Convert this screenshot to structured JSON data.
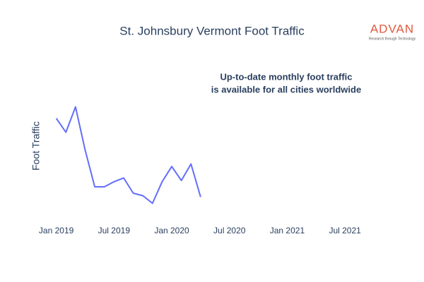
{
  "chart_data": {
    "type": "line",
    "title": "St. Johnsbury Vermont Foot Traffic",
    "y_label": "Foot Traffic",
    "annotation": [
      "Up-to-date monthly foot traffic",
      "is available for all cities worldwide"
    ],
    "logo": {
      "name": "ADVAN",
      "tagline": "Research through Technology"
    },
    "x": [
      "2019-01",
      "2019-02",
      "2019-03",
      "2019-04",
      "2019-05",
      "2019-06",
      "2019-07",
      "2019-08",
      "2019-09",
      "2019-10",
      "2019-11",
      "2019-12",
      "2020-01",
      "2020-02",
      "2020-03",
      "2020-04"
    ],
    "series": [
      {
        "color": "#636efa",
        "values": [
          79,
          68,
          88,
          54,
          25,
          25,
          29,
          32,
          20,
          18,
          12,
          29,
          41,
          30,
          43,
          17
        ]
      }
    ],
    "xlim": [
      "2018-12",
      "2021-10"
    ],
    "xticks": [
      {
        "value": "2019-01",
        "label": "Jan 2019"
      },
      {
        "value": "2019-07",
        "label": "Jul 2019"
      },
      {
        "value": "2020-01",
        "label": "Jan 2020"
      },
      {
        "value": "2020-07",
        "label": "Jul 2020"
      },
      {
        "value": "2021-01",
        "label": "Jan 2021"
      },
      {
        "value": "2021-07",
        "label": "Jul 2021"
      }
    ],
    "ylim": [
      0,
      100
    ]
  }
}
